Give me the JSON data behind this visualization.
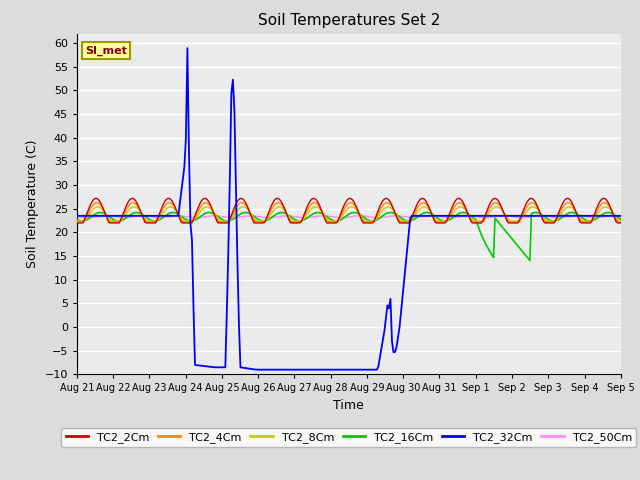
{
  "title": "Soil Temperatures Set 2",
  "xlabel": "Time",
  "ylabel": "Soil Temperature (C)",
  "ylim": [
    -10,
    62
  ],
  "yticks": [
    -10,
    -5,
    0,
    5,
    10,
    15,
    20,
    25,
    30,
    35,
    40,
    45,
    50,
    55,
    60
  ],
  "bg_color": "#dcdcdc",
  "plot_bg_color": "#ebebeb",
  "legend_labels": [
    "TC2_2Cm",
    "TC2_4Cm",
    "TC2_8Cm",
    "TC2_16Cm",
    "TC2_32Cm",
    "TC2_50Cm"
  ],
  "line_colors": [
    "#cc0000",
    "#ff8800",
    "#cccc00",
    "#00cc00",
    "#0000ff",
    "#ff88ff"
  ],
  "annotation_text": "SI_met",
  "annotation_bg": "#ffff99",
  "annotation_border": "#999900"
}
